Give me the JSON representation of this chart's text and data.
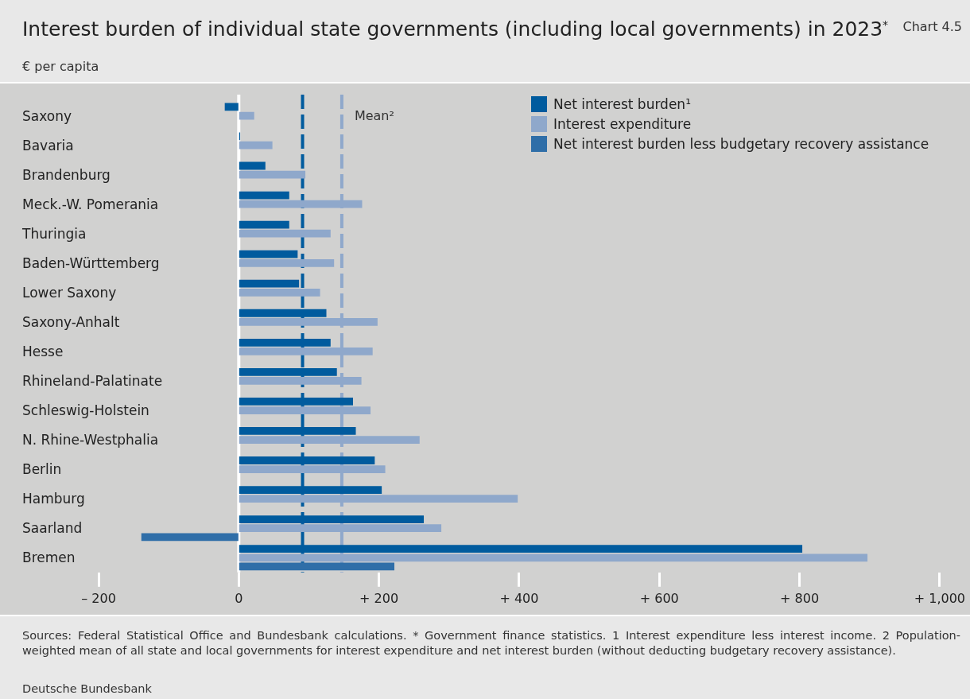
{
  "chart_data": {
    "type": "bar",
    "orientation": "horizontal",
    "title": "Interest burden of individual state governments (including local governments) in 2023$^{*}$",
    "subtitle": "€ per capita",
    "categories": [
      "Saxony",
      "Bavaria",
      "Brandenburg",
      "Meck.-W. Pomerania",
      "Thuringia",
      "Baden-Württemberg",
      "Lower Saxony",
      "Saxony-Anhalt",
      "Hesse",
      "Rhineland-Palatinate",
      "Schleswig-Holstein",
      "N. Rhine-Westphalia",
      "Berlin",
      "Hamburg",
      "Saarland",
      "Bremen"
    ],
    "series": [
      {
        "name": "Net interest burden¹",
        "color": "#005b9e",
        "values": [
          -20,
          2,
          38,
          72,
          72,
          84,
          86,
          125,
          131,
          140,
          163,
          167,
          194,
          204,
          264,
          804
        ]
      },
      {
        "name": "Interest expenditure",
        "color": "#8fa8cb",
        "values": [
          22,
          48,
          95,
          176,
          131,
          136,
          116,
          198,
          191,
          175,
          188,
          258,
          209,
          398,
          289,
          897
        ]
      },
      {
        "name": "Net interest burden less budgetary recovery assistance",
        "color": "#2f6ea8",
        "values": [
          null,
          null,
          null,
          null,
          null,
          null,
          null,
          null,
          null,
          null,
          null,
          null,
          null,
          null,
          -139,
          222
        ]
      }
    ],
    "xlim": [
      -200,
      1000
    ],
    "xticks": [
      {
        "value": -200,
        "label": "– 200"
      },
      0,
      {
        "value": 200,
        "label": "+ 200"
      },
      {
        "value": 400,
        "label": "+ 400"
      },
      {
        "value": 600,
        "label": "+ 600"
      },
      {
        "value": 800,
        "label": "+ 800"
      },
      {
        "value": 1000,
        "label": "+ 1,000"
      }
    ],
    "ref_lines": [
      {
        "axis": "x",
        "value": 0,
        "color": "#ffffff",
        "line_style": "solid"
      },
      {
        "axis": "x",
        "value": 91,
        "color": "#005b9e",
        "line_style": "dashed"
      },
      {
        "axis": "x",
        "value": 147,
        "label": "Mean²",
        "color": "#8fa8cb",
        "line_style": "dashed"
      }
    ],
    "legend": "top right",
    "grid": false,
    "annotations": [
      "Chart 4.5",
      "Sources: Federal Statistical Office and Bundesbank calculations. * Government finance statistics. 1 Interest expenditure less interest income. 2 Population-weighted mean of all state and local governments for interest expenditure and net interest burden (without deducting budgetary recovery assistance).",
      "Deutsche Bundesbank"
    ]
  }
}
